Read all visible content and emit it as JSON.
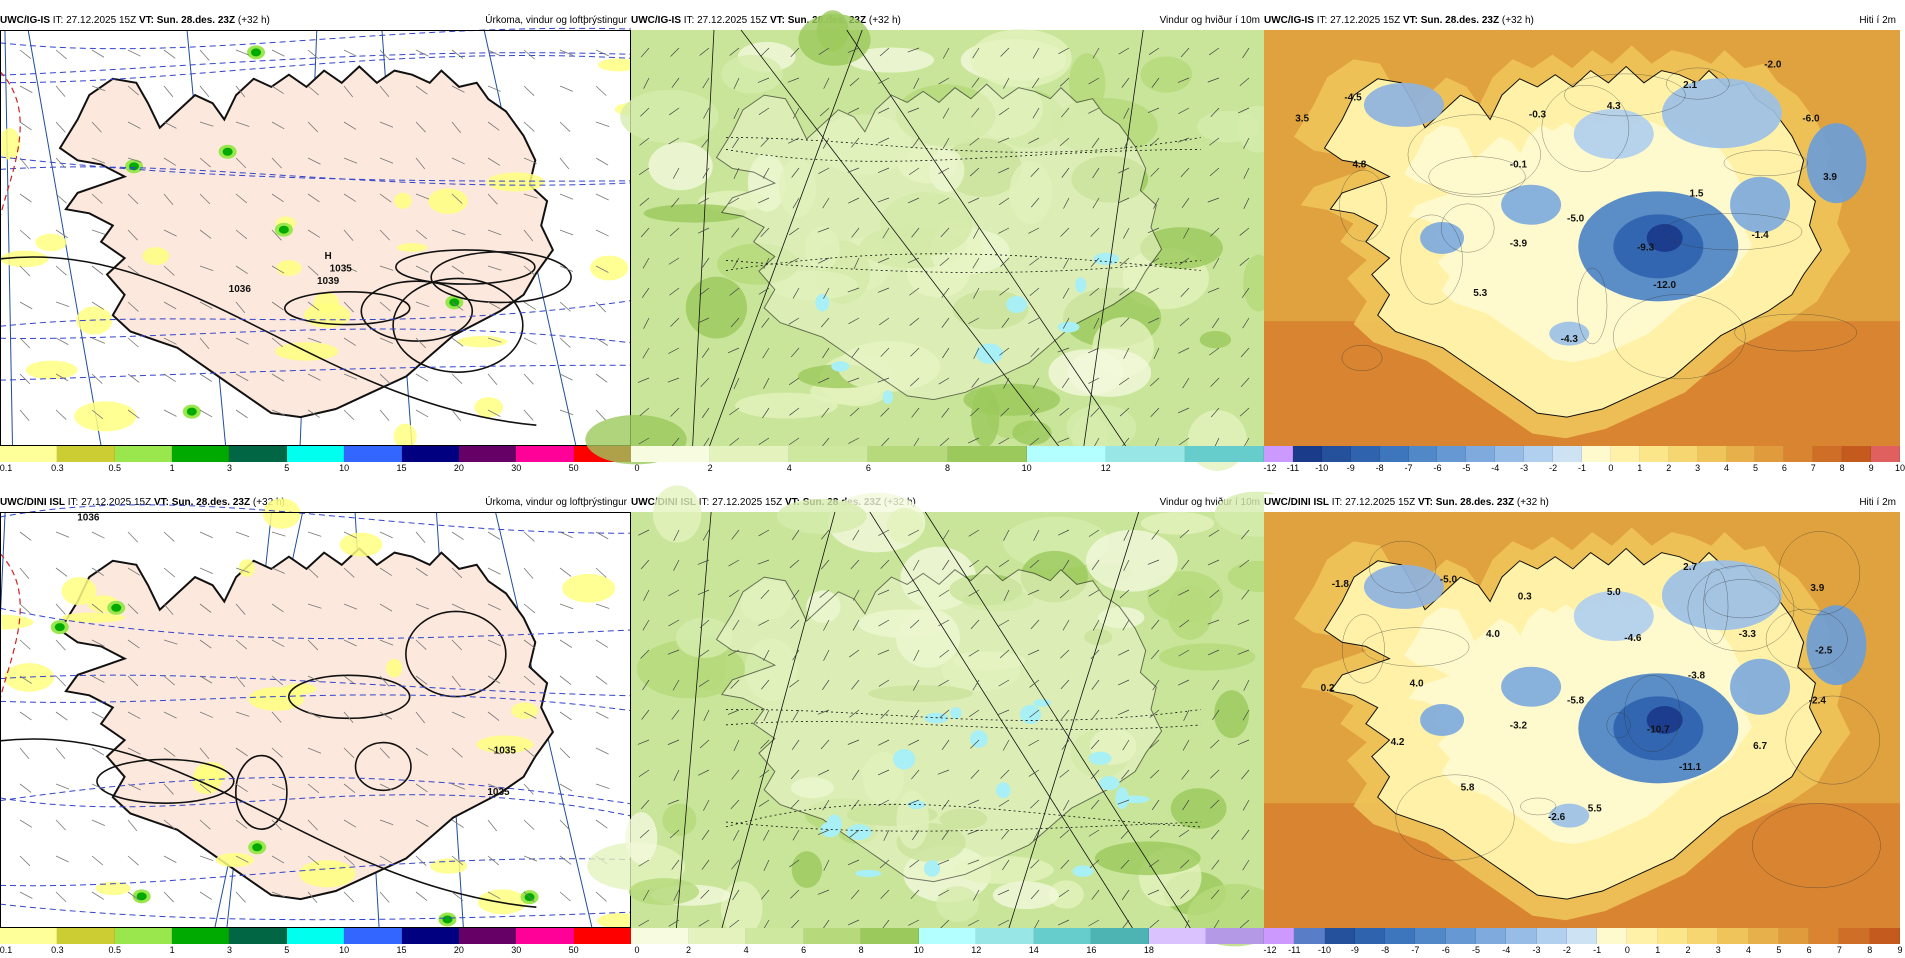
{
  "rows": [
    {
      "model": "UWC/IG-IS",
      "it_prefix": "IT: 27.12.2025 15Z ",
      "vt_prefix": "VT:",
      "vt_value": " Sun. 28.des. 23Z",
      "lead": " (+32 h)",
      "panels": [
        {
          "subtitle": "Úrkoma, vindur og loftþrýstingur",
          "kind": "precip",
          "legend_colors": [
            "#ffff99",
            "#cccc33",
            "#99e64d",
            "#00aa00",
            "#006644",
            "#00ffee",
            "#3366ff",
            "#000080",
            "#660066",
            "#ff0099",
            "#ff0000"
          ],
          "legend_ticks": [
            "0.1",
            "0.3",
            "0.5",
            "1",
            "3",
            "5",
            "10",
            "15",
            "20",
            "30",
            "50"
          ],
          "map_labels": [
            {
              "t": "H"
            },
            {
              "t": "1039"
            },
            {
              "t": "1036"
            },
            {
              "t": "1035"
            }
          ]
        },
        {
          "subtitle": "Vindur og hviður í 10m",
          "kind": "wind",
          "legend_colors": [
            "#f7fce0",
            "#e4f3bd",
            "#cfe8a0",
            "#b5d97b",
            "#9bc95b",
            "#b3ffff",
            "#99e6e6",
            "#66cccc"
          ],
          "legend_ticks": [
            "0",
            "2",
            "4",
            "6",
            "8",
            "10",
            "12"
          ],
          "map_labels": []
        },
        {
          "subtitle": "Hiti í 2m",
          "kind": "temp",
          "legend_colors": [
            "#cc99ff",
            "#1a3a8a",
            "#24509c",
            "#2f63ae",
            "#3d76bd",
            "#5088c8",
            "#6699d4",
            "#7eaadd",
            "#97bde6",
            "#b1cfee",
            "#cde2f2",
            "#fffacd",
            "#fff2a8",
            "#fbe68a",
            "#f5d670",
            "#efc45a",
            "#e8b04a",
            "#e09b3c",
            "#d88430",
            "#cf6e26",
            "#c55a1e",
            "#e06060"
          ],
          "legend_ticks": [
            "-12",
            "-11",
            "-10",
            "-9",
            "-8",
            "-7",
            "-6",
            "-5",
            "-4",
            "-3",
            "-2",
            "-1",
            "0",
            "1",
            "2",
            "3",
            "4",
            "5",
            "6",
            "7",
            "8",
            "9",
            "10"
          ],
          "map_labels": [
            {
              "t": "-4.5"
            },
            {
              "t": "3.5"
            },
            {
              "t": "4.8"
            },
            {
              "t": "-0.3"
            },
            {
              "t": "4.3"
            },
            {
              "t": "2.1"
            },
            {
              "t": "-2.0"
            },
            {
              "t": "-6.0"
            },
            {
              "t": "-0.1"
            },
            {
              "t": "3.9"
            },
            {
              "t": "1.5"
            },
            {
              "t": "-5.0"
            },
            {
              "t": "-3.9"
            },
            {
              "t": "-9.3"
            },
            {
              "t": "-1.4"
            },
            {
              "t": "-12.0"
            },
            {
              "t": "5.3"
            },
            {
              "t": "-4.3"
            }
          ]
        }
      ]
    },
    {
      "model": "UWC/DINI ISL",
      "it_prefix": "IT: 27.12.2025 15Z ",
      "vt_prefix": "VT:",
      "vt_value": " Sun. 28.des. 23Z",
      "lead": " (+32 h)",
      "panels": [
        {
          "subtitle": "Úrkoma, vindur og loftþrýstingur",
          "kind": "precip",
          "legend_colors": [
            "#ffff99",
            "#cccc33",
            "#99e64d",
            "#00aa00",
            "#006644",
            "#00ffee",
            "#3366ff",
            "#000080",
            "#660066",
            "#ff0099",
            "#ff0000"
          ],
          "legend_ticks": [
            "0.1",
            "0.3",
            "0.5",
            "1",
            "3",
            "5",
            "10",
            "15",
            "20",
            "30",
            "50"
          ],
          "map_labels": [
            {
              "t": "1036"
            },
            {
              "t": "1035"
            },
            {
              "t": "1035"
            }
          ]
        },
        {
          "subtitle": "Vindur og hviður í 10m",
          "kind": "wind",
          "legend_colors": [
            "#f7fce0",
            "#e4f3bd",
            "#cfe8a0",
            "#b5d97b",
            "#9bc95b",
            "#b3ffff",
            "#99e6e6",
            "#66cccc",
            "#4db3b3",
            "#d9c2ff",
            "#b399e6"
          ],
          "legend_ticks": [
            "0",
            "2",
            "4",
            "6",
            "8",
            "10",
            "12",
            "14",
            "16",
            "18"
          ],
          "map_labels": []
        },
        {
          "subtitle": "Hiti í 2m",
          "kind": "temp",
          "legend_colors": [
            "#cc99ff",
            "#5a7dc8",
            "#24509c",
            "#2f63ae",
            "#3d76bd",
            "#5088c8",
            "#6699d4",
            "#7eaadd",
            "#97bde6",
            "#b1cfee",
            "#cde2f2",
            "#fffacd",
            "#fff2a8",
            "#fbe68a",
            "#f5d670",
            "#efc45a",
            "#e8b04a",
            "#e09b3c",
            "#d88430",
            "#cf6e26",
            "#c55a1e"
          ],
          "legend_ticks": [
            "-12",
            "-11",
            "-10",
            "-9",
            "-8",
            "-7",
            "-6",
            "-5",
            "-4",
            "-3",
            "-2",
            "-1",
            "0",
            "1",
            "2",
            "3",
            "4",
            "5",
            "6",
            "7",
            "8",
            "9"
          ],
          "map_labels": [
            {
              "t": "-1.8"
            },
            {
              "t": "-5.0"
            },
            {
              "t": "0.3"
            },
            {
              "t": "5.0"
            },
            {
              "t": "2.7"
            },
            {
              "t": "3.9"
            },
            {
              "t": "4.0"
            },
            {
              "t": "-4.6"
            },
            {
              "t": "-3.3"
            },
            {
              "t": "-2.5"
            },
            {
              "t": "0.2"
            },
            {
              "t": "4.0"
            },
            {
              "t": "-3.8"
            },
            {
              "t": "-5.8"
            },
            {
              "t": "-3.2"
            },
            {
              "t": "-10.7"
            },
            {
              "t": "-2.4"
            },
            {
              "t": "4.2"
            },
            {
              "t": "6.7"
            },
            {
              "t": "-11.1"
            },
            {
              "t": "5.8"
            },
            {
              "t": "-2.6"
            },
            {
              "t": "5.5"
            }
          ]
        }
      ]
    }
  ]
}
